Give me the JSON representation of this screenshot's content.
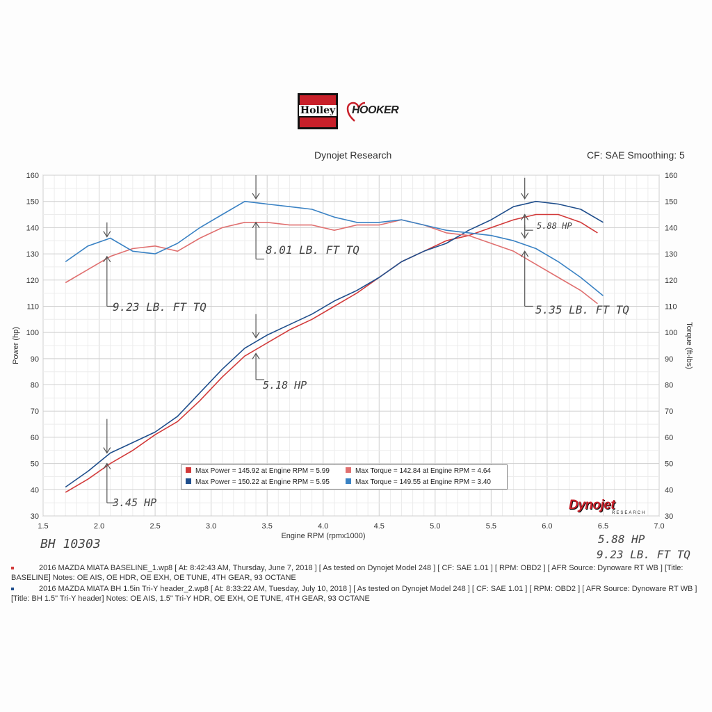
{
  "header": {
    "title": "Dynojet Research",
    "cf_info": "CF: SAE Smoothing: 5"
  },
  "logos": {
    "holley": "Holley",
    "hooker": "HOOKER",
    "dynojet": "Dynojet",
    "dynojet_sub": "RESEARCH"
  },
  "chart_data": {
    "type": "line",
    "xlabel": "Engine RPM (rpmx1000)",
    "ylabel_left": "Power (hp)",
    "ylabel_right": "Torque (ft-lbs)",
    "xlim": [
      1.5,
      7.0
    ],
    "ylim": [
      30,
      160
    ],
    "x_ticks": [
      "1.5",
      "2.0",
      "2.5",
      "3.0",
      "3.5",
      "4.0",
      "4.5",
      "5.0",
      "5.5",
      "6.0",
      "6.5",
      "7.0"
    ],
    "y_ticks": [
      "30",
      "40",
      "50",
      "60",
      "70",
      "80",
      "90",
      "100",
      "110",
      "120",
      "130",
      "140",
      "150",
      "160"
    ],
    "grid": true,
    "series": [
      {
        "name": "Max Power = 145.92 at Engine RPM = 5.99",
        "role": "power-baseline",
        "color": "#d23a3a",
        "x": [
          1.7,
          1.9,
          2.1,
          2.3,
          2.5,
          2.7,
          2.9,
          3.1,
          3.3,
          3.5,
          3.7,
          3.9,
          4.1,
          4.3,
          4.5,
          4.7,
          4.9,
          5.1,
          5.3,
          5.5,
          5.7,
          5.9,
          6.1,
          6.3,
          6.45
        ],
        "y": [
          39,
          44,
          50,
          55,
          61,
          66,
          74,
          83,
          91,
          96,
          101,
          105,
          110,
          115,
          121,
          127,
          131,
          135,
          137,
          140,
          143,
          145,
          145,
          142,
          138
        ]
      },
      {
        "name": "Max Power = 150.22 at Engine RPM = 5.95",
        "role": "power-header",
        "color": "#1f4e8c",
        "x": [
          1.7,
          1.9,
          2.1,
          2.3,
          2.5,
          2.7,
          2.9,
          3.1,
          3.3,
          3.5,
          3.7,
          3.9,
          4.1,
          4.3,
          4.5,
          4.7,
          4.9,
          5.1,
          5.3,
          5.5,
          5.7,
          5.9,
          6.1,
          6.3,
          6.5
        ],
        "y": [
          41,
          47,
          54,
          58,
          62,
          68,
          77,
          86,
          94,
          99,
          103,
          107,
          112,
          116,
          121,
          127,
          131,
          134,
          139,
          143,
          148,
          150,
          149,
          147,
          142
        ]
      },
      {
        "name": "Max Torque = 142.84 at Engine RPM = 4.64",
        "role": "torque-baseline",
        "color": "#e07070",
        "x": [
          1.7,
          1.9,
          2.1,
          2.3,
          2.5,
          2.7,
          2.9,
          3.1,
          3.3,
          3.5,
          3.7,
          3.9,
          4.1,
          4.3,
          4.5,
          4.7,
          4.9,
          5.1,
          5.3,
          5.5,
          5.7,
          5.9,
          6.1,
          6.3,
          6.45
        ],
        "y": [
          119,
          124,
          129,
          132,
          133,
          131,
          136,
          140,
          142,
          142,
          141,
          141,
          139,
          141,
          141,
          143,
          141,
          138,
          137,
          134,
          131,
          126,
          121,
          116,
          111
        ]
      },
      {
        "name": "Max Torque = 149.55 at Engine RPM = 3.40",
        "role": "torque-header",
        "color": "#3a82c4",
        "x": [
          1.7,
          1.9,
          2.1,
          2.3,
          2.5,
          2.7,
          2.9,
          3.1,
          3.3,
          3.5,
          3.7,
          3.9,
          4.1,
          4.3,
          4.5,
          4.7,
          4.9,
          5.1,
          5.3,
          5.5,
          5.7,
          5.9,
          6.1,
          6.3,
          6.5
        ],
        "y": [
          127,
          133,
          136,
          131,
          130,
          134,
          140,
          145,
          150,
          149,
          148,
          147,
          144,
          142,
          142,
          143,
          141,
          139,
          138,
          137,
          135,
          132,
          127,
          121,
          114
        ]
      }
    ],
    "legend": {
      "placement": "bottom-center"
    }
  },
  "annotations": {
    "tq_2000": "9.23 LB. FT TQ",
    "tq_3400": "8.01 LB. FT TQ",
    "tq_5800": "5.35 LB. FT TQ",
    "hp_2000": "3.45 HP",
    "hp_3400": "5.18 HP",
    "hp_5800": "5.88 HP",
    "run_id": "BH 10303",
    "summary_hp": "5.88 HP",
    "summary_tq": "9.23 LB. FT TQ"
  },
  "footer": {
    "run1_line1": "2016 MAZDA MIATA BASELINE_1.wp8 [ At: 8:42:43 AM, Thursday, June 7, 2018 ] [ As tested on Dynojet Model 248 ] [ CF: SAE 1.01 ] [ RPM: OBD2 ] [ AFR Source: Dynoware RT WB ] [Title:",
    "run1_line2": "BASELINE] Notes: OE AIS, OE HDR, OE EXH, OE TUNE, 4TH GEAR, 93 OCTANE",
    "run2_line1": "2016 MAZDA MIATA BH 1.5in Tri-Y header_2.wp8 [ At: 8:33:22 AM, Tuesday, July 10, 2018 ] [ As tested on Dynojet Model 248 ] [ CF: SAE 1.01 ] [ RPM: OBD2 ] [ AFR Source: Dynoware RT WB ]",
    "run2_line2": "[Title: BH 1.5\" Tri-Y header] Notes: OE AIS, 1.5\" Tri-Y HDR, OE EXH, OE TUNE, 4TH GEAR, 93 OCTANE",
    "run1_color": "#d23a3a",
    "run2_color": "#1f4e8c"
  }
}
